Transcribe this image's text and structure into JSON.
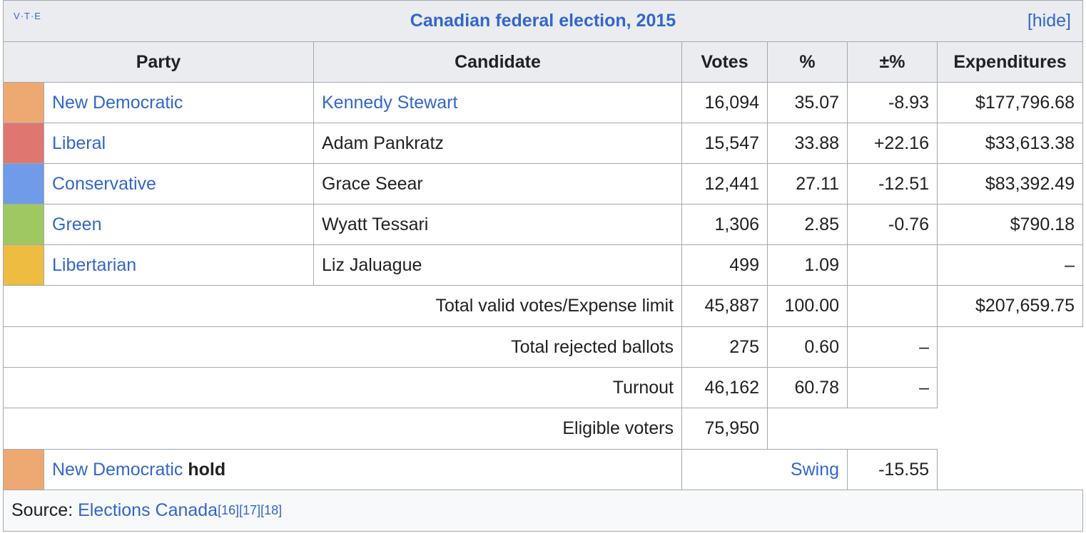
{
  "header": {
    "vte": "V·T·E",
    "title": "Canadian federal election, 2015",
    "toggle": "[hide]"
  },
  "table": {
    "columns": [
      "Party",
      "Candidate",
      "Votes",
      "%",
      "±%",
      "Expenditures"
    ],
    "rows": [
      {
        "color": "#eea872",
        "party": "New Democratic",
        "candidate": "Kennedy Stewart",
        "candidate_linked": true,
        "votes": "16,094",
        "percent": "35.07",
        "change": "-8.93",
        "expenditures": "$177,796.68"
      },
      {
        "color": "#e07670",
        "party": "Liberal",
        "candidate": "Adam Pankratz",
        "candidate_linked": false,
        "votes": "15,547",
        "percent": "33.88",
        "change": "+22.16",
        "expenditures": "$33,613.38"
      },
      {
        "color": "#6f9be8",
        "party": "Conservative",
        "candidate": "Grace Seear",
        "candidate_linked": false,
        "votes": "12,441",
        "percent": "27.11",
        "change": "-12.51",
        "expenditures": "$83,392.49"
      },
      {
        "color": "#9fc862",
        "party": "Green",
        "candidate": "Wyatt Tessari",
        "candidate_linked": false,
        "votes": "1,306",
        "percent": "2.85",
        "change": "-0.76",
        "expenditures": "$790.18"
      },
      {
        "color": "#edbc40",
        "party": "Libertarian",
        "candidate": "Liz Jaluague",
        "candidate_linked": false,
        "votes": "499",
        "percent": "1.09",
        "change": null,
        "expenditures": "–"
      }
    ],
    "summary": [
      {
        "label": "Total valid votes/Expense limit",
        "votes": "45,887",
        "percent": "100.00",
        "change": null,
        "expenditures": "$207,659.75"
      },
      {
        "label": "Total rejected ballots",
        "votes": "275",
        "percent": "0.60",
        "change": "–"
      },
      {
        "label": "Turnout",
        "votes": "46,162",
        "percent": "60.78",
        "change": "–"
      },
      {
        "label": "Eligible voters",
        "votes": "75,950"
      }
    ],
    "hold": {
      "color": "#eea872",
      "party": "New Democratic",
      "word": "hold",
      "swing_label": "Swing",
      "swing": "-15.55"
    },
    "source": {
      "label": "Source:",
      "link": "Elections Canada",
      "refs": [
        "[16]",
        "[17]",
        "[18]"
      ]
    }
  }
}
